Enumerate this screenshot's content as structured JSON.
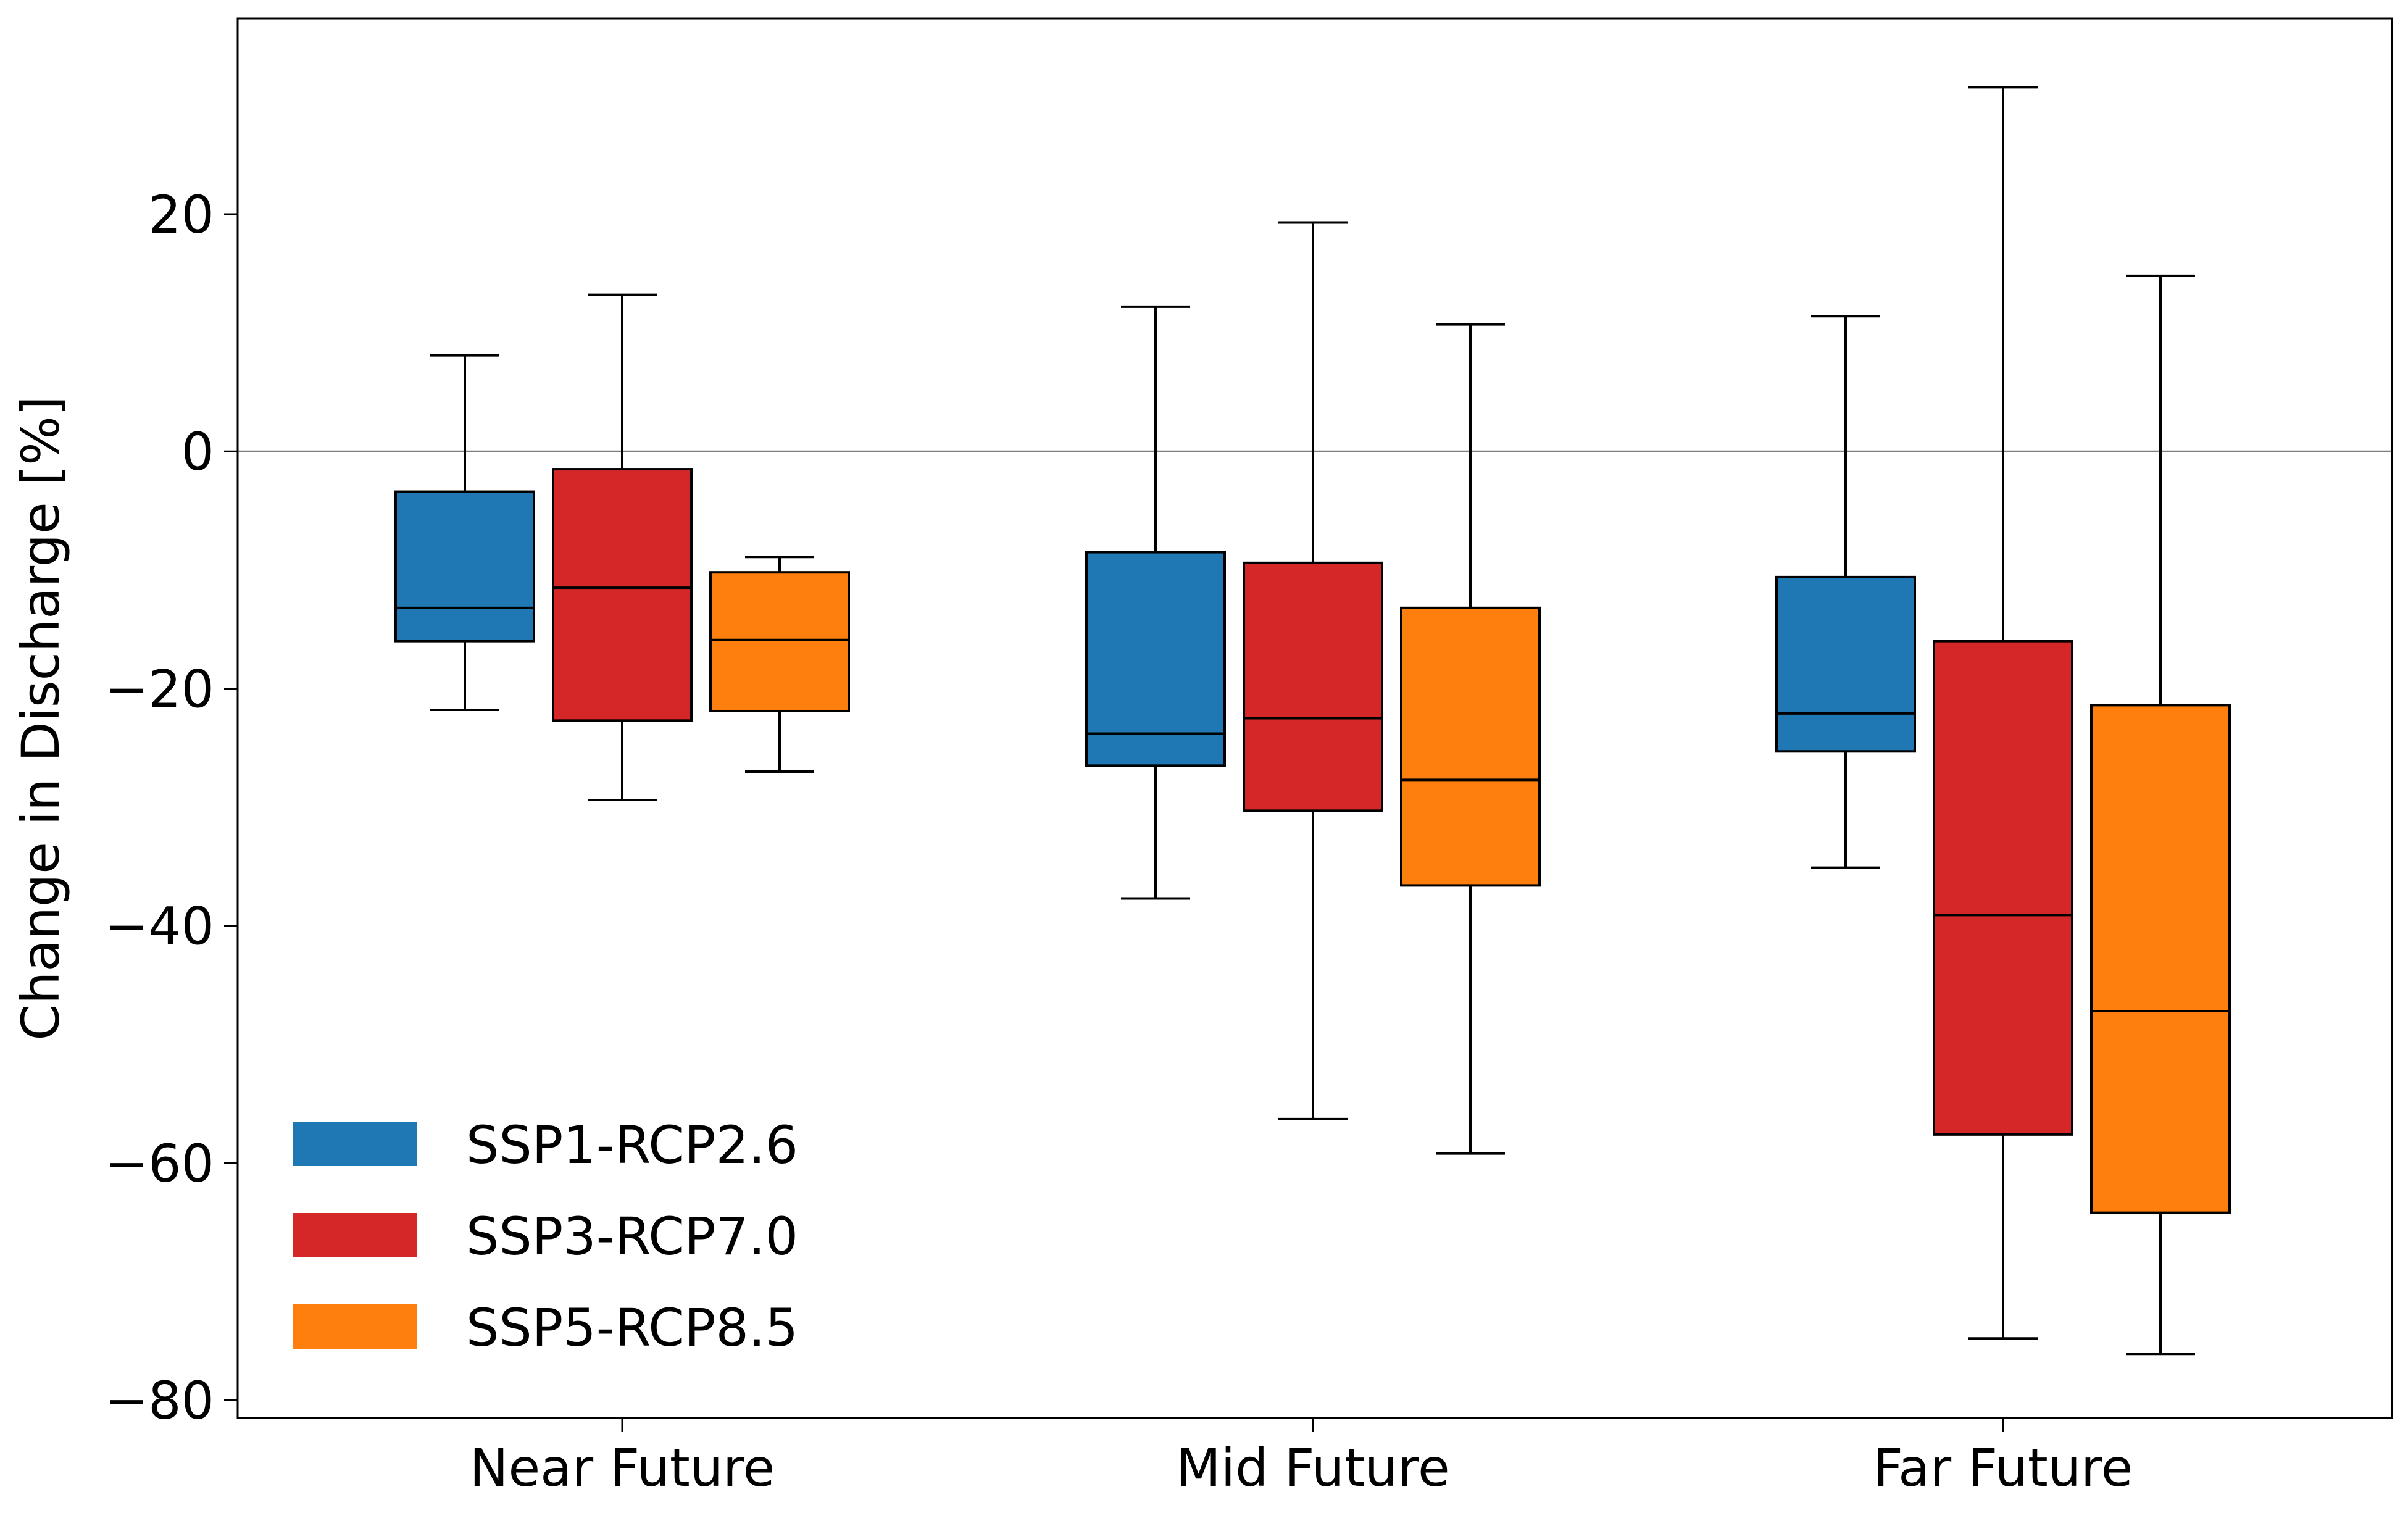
{
  "chart_data": {
    "type": "box",
    "title": "",
    "xlabel": "",
    "ylabel": "Change in Discharge [%]",
    "ylim": [
      -81.5,
      36.5
    ],
    "yticks": [
      20,
      0,
      -20,
      -40,
      -60,
      -80
    ],
    "ytick_labels": [
      "20",
      "0",
      "−20",
      "−40",
      "−60",
      "−80"
    ],
    "reference_line": 0,
    "categories": [
      "Near Future",
      "Mid Future",
      "Far Future"
    ],
    "legend_position": "lower-left",
    "series": [
      {
        "name": "SSP1-RCP2.6",
        "color": "#1f77b4",
        "boxes": [
          {
            "whisker_low": -21.8,
            "q1": -16.0,
            "median": -13.2,
            "q3": -3.4,
            "whisker_high": 8.1
          },
          {
            "whisker_low": -37.7,
            "q1": -26.5,
            "median": -23.8,
            "q3": -8.5,
            "whisker_high": 12.2
          },
          {
            "whisker_low": -35.1,
            "q1": -25.3,
            "median": -22.1,
            "q3": -10.6,
            "whisker_high": 11.4
          }
        ]
      },
      {
        "name": "SSP3-RCP7.0",
        "color": "#d62728",
        "boxes": [
          {
            "whisker_low": -29.4,
            "q1": -22.7,
            "median": -11.5,
            "q3": -1.5,
            "whisker_high": 13.2
          },
          {
            "whisker_low": -56.3,
            "q1": -30.3,
            "median": -22.5,
            "q3": -9.4,
            "whisker_high": 19.3
          },
          {
            "whisker_low": -74.8,
            "q1": -57.6,
            "median": -39.1,
            "q3": -16.0,
            "whisker_high": 30.7
          }
        ]
      },
      {
        "name": "SSP5-RCP8.5",
        "color": "#ff7f0e",
        "boxes": [
          {
            "whisker_low": -27.0,
            "q1": -21.9,
            "median": -15.9,
            "q3": -10.2,
            "whisker_high": -8.9
          },
          {
            "whisker_low": -59.2,
            "q1": -36.6,
            "median": -27.7,
            "q3": -13.2,
            "whisker_high": 10.7
          },
          {
            "whisker_low": -76.1,
            "q1": -64.2,
            "median": -47.2,
            "q3": -21.4,
            "whisker_high": 14.8
          }
        ]
      }
    ]
  }
}
